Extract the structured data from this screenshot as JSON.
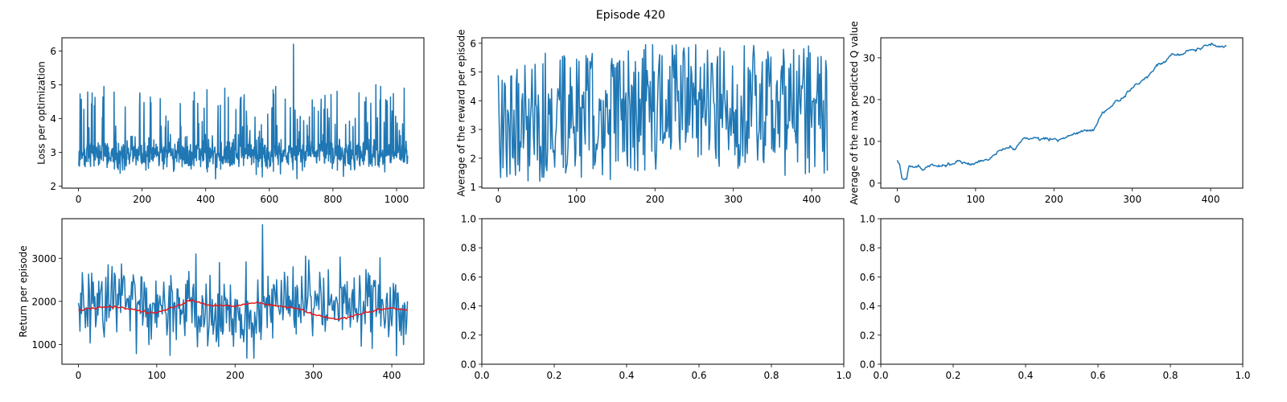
{
  "figure": {
    "suptitle": "Episode 420"
  },
  "colors": {
    "series": "#1f77b4",
    "moving_average": "#e31a1c",
    "axes": "#000000"
  },
  "chart_data": [
    {
      "type": "line",
      "id": "loss",
      "ylabel": "Loss per optimization",
      "xlim": [
        -52,
        1086
      ],
      "ylim": [
        1.94,
        6.39
      ],
      "xticks": [
        0,
        200,
        400,
        600,
        800,
        1000
      ],
      "yticks": [
        2,
        3,
        4,
        5,
        6
      ],
      "series": [
        {
          "n": 1036,
          "x_start": 0,
          "x_end": 1035,
          "baseline": 2.9,
          "noise": 0.22,
          "floor": 2.2,
          "spike_probability": 0.1,
          "spike_min": 3.5,
          "spike_max": 4.9,
          "peaks": [
            [
              80,
              4.95
            ],
            [
              460,
              4.9
            ],
            [
              620,
              4.95
            ],
            [
              676,
              6.2
            ],
            [
              935,
              5.0
            ],
            [
              950,
              4.95
            ]
          ]
        }
      ]
    },
    {
      "type": "line",
      "id": "avg_reward",
      "ylabel": "Average of the reward per episode",
      "xlim": [
        -21,
        441
      ],
      "ylim": [
        0.96,
        6.19
      ],
      "xticks": [
        0,
        100,
        200,
        300,
        400
      ],
      "yticks": [
        1,
        2,
        3,
        4,
        5,
        6
      ],
      "series": [
        {
          "n": 421,
          "x_start": 0,
          "x_end": 420,
          "min": 1.2,
          "max": 5.95,
          "segment_means": [
            [
              0,
              3.3
            ],
            [
              80,
              3.5
            ],
            [
              150,
              3.4
            ],
            [
              200,
              3.9
            ],
            [
              290,
              4.0
            ],
            [
              350,
              3.7
            ],
            [
              420,
              3.6
            ]
          ]
        }
      ]
    },
    {
      "type": "line",
      "id": "max_q",
      "ylabel": "Average of the max predicted Q value",
      "xlim": [
        -21,
        441
      ],
      "ylim": [
        -1.2,
        34.8
      ],
      "xticks": [
        0,
        100,
        200,
        300,
        400
      ],
      "yticks": [
        0,
        10,
        20,
        30
      ],
      "series": [
        {
          "n": 421,
          "x_start": 0,
          "x_end": 420,
          "noise": 0.18,
          "points": [
            [
              0,
              5.0
            ],
            [
              3,
              4.2
            ],
            [
              6,
              0.9
            ],
            [
              12,
              0.8
            ],
            [
              15,
              3.2
            ],
            [
              25,
              3.3
            ],
            [
              50,
              4.0
            ],
            [
              100,
              5.3
            ],
            [
              120,
              6.2
            ],
            [
              130,
              8.0
            ],
            [
              150,
              8.6
            ],
            [
              160,
              10.3
            ],
            [
              210,
              10.5
            ],
            [
              230,
              12.0
            ],
            [
              250,
              13.0
            ],
            [
              260,
              16.5
            ],
            [
              280,
              19.5
            ],
            [
              300,
              23.0
            ],
            [
              320,
              25.5
            ],
            [
              335,
              28.5
            ],
            [
              350,
              30.5
            ],
            [
              380,
              32.0
            ],
            [
              400,
              33.0
            ],
            [
              420,
              32.8
            ]
          ]
        }
      ]
    },
    {
      "type": "line",
      "id": "return",
      "ylabel": "Return per episode",
      "xlim": [
        -21,
        441
      ],
      "ylim": [
        540,
        3920
      ],
      "xticks": [
        0,
        100,
        200,
        300,
        400
      ],
      "yticks": [
        1000,
        2000,
        3000
      ],
      "series": [
        {
          "n": 421,
          "x_start": 0,
          "x_end": 420,
          "min": 680,
          "max": 3780,
          "noise": 450,
          "peaks": [
            [
              235,
              3780
            ],
            [
              150,
              3100
            ],
            [
              290,
              3050
            ],
            [
              38,
              2850
            ],
            [
              180,
              2900
            ]
          ]
        },
        {
          "role": "moving_average",
          "points": [
            [
              0,
              1800
            ],
            [
              40,
              1880
            ],
            [
              70,
              1820
            ],
            [
              90,
              1720
            ],
            [
              110,
              1780
            ],
            [
              140,
              2000
            ],
            [
              150,
              2010
            ],
            [
              165,
              1920
            ],
            [
              200,
              1890
            ],
            [
              225,
              1970
            ],
            [
              250,
              1910
            ],
            [
              280,
              1830
            ],
            [
              300,
              1690
            ],
            [
              330,
              1580
            ],
            [
              345,
              1640
            ],
            [
              380,
              1800
            ],
            [
              400,
              1840
            ],
            [
              420,
              1790
            ]
          ]
        }
      ]
    },
    {
      "type": "line",
      "id": "empty_1",
      "ylabel": "",
      "xlim": [
        0,
        1
      ],
      "ylim": [
        0,
        1
      ],
      "xticks": [
        0,
        0.2,
        0.4,
        0.6,
        0.8,
        1.0
      ],
      "yticks": [
        0,
        0.2,
        0.4,
        0.6,
        0.8,
        1.0
      ],
      "series": []
    },
    {
      "type": "line",
      "id": "empty_2",
      "ylabel": "",
      "xlim": [
        0,
        1
      ],
      "ylim": [
        0,
        1
      ],
      "xticks": [
        0,
        0.2,
        0.4,
        0.6,
        0.8,
        1.0
      ],
      "yticks": [
        0,
        0.2,
        0.4,
        0.6,
        0.8,
        1.0
      ],
      "series": []
    }
  ]
}
